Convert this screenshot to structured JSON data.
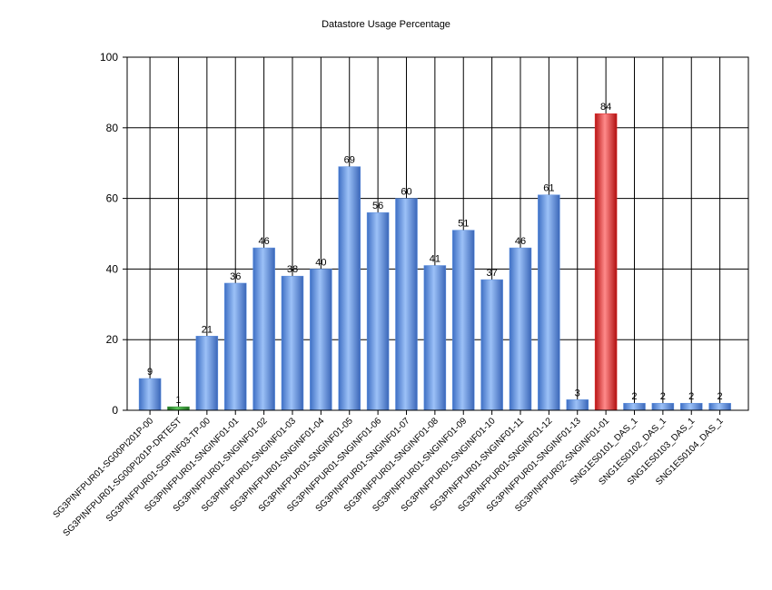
{
  "chart_data": {
    "type": "bar",
    "title": "Datastore Usage Percentage",
    "xlabel": "",
    "ylabel": "",
    "ylim": [
      0,
      100
    ],
    "yticks": [
      0,
      20,
      40,
      60,
      80,
      100
    ],
    "grid": true,
    "categories": [
      "SG3PINFPUR01-SG00PI201P-00",
      "SG3PINFPUR01-SG00PI201P-DRTEST",
      "SG3PINFPUR01-SGPINF03-TP-00",
      "SG3PINFPUR01-SNGINF01-01",
      "SG3PINFPUR01-SNGINF01-02",
      "SG3PINFPUR01-SNGINF01-03",
      "SG3PINFPUR01-SNGINF01-04",
      "SG3PINFPUR01-SNGINF01-05",
      "SG3PINFPUR01-SNGINF01-06",
      "SG3PINFPUR01-SNGINF01-07",
      "SG3PINFPUR01-SNGINF01-08",
      "SG3PINFPUR01-SNGINF01-09",
      "SG3PINFPUR01-SNGINF01-10",
      "SG3PINFPUR01-SNGINF01-11",
      "SG3PINFPUR01-SNGINF01-12",
      "SG3PINFPUR01-SNGINF01-13",
      "SG3PINFPUR02-SNGINF01-01",
      "SNG1ES0101_DAS_1",
      "SNG1ES0102_DAS_1",
      "SNG1ES0103_DAS_1",
      "SNG1ES0104_DAS_1"
    ],
    "values": [
      9,
      1,
      21,
      36,
      46,
      38,
      40,
      69,
      56,
      60,
      41,
      51,
      37,
      46,
      61,
      3,
      84,
      2,
      2,
      2,
      2
    ],
    "bar_colors": [
      "blue",
      "green",
      "blue",
      "blue",
      "blue",
      "blue",
      "blue",
      "blue",
      "blue",
      "blue",
      "blue",
      "blue",
      "blue",
      "blue",
      "blue",
      "blue",
      "red",
      "blue",
      "blue",
      "blue",
      "blue"
    ],
    "colors": {
      "blue": "#5b8fe0",
      "green": "#3a9a3a",
      "red": "#e02828"
    }
  }
}
